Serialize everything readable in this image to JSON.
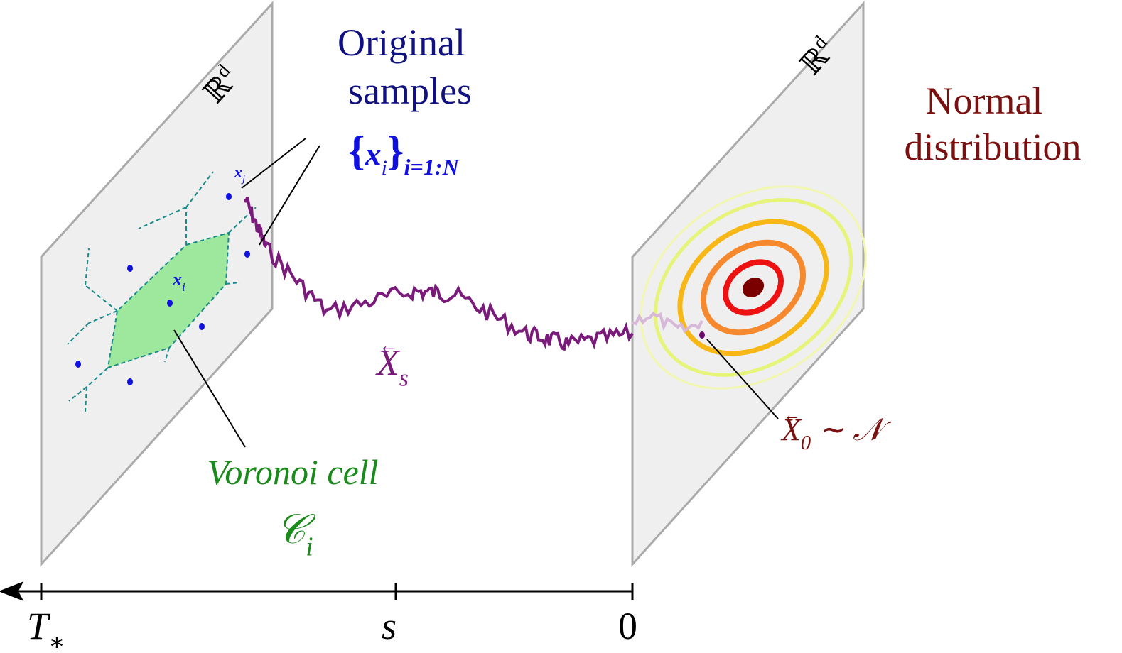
{
  "planes": [
    {
      "label": {
        "base": "ℝ",
        "sup": "d"
      }
    },
    {
      "label": {
        "base": "ℝ",
        "sup": "d"
      }
    }
  ],
  "samples": {
    "title_lines": [
      "Original",
      "samples"
    ],
    "set": {
      "open": "{",
      "base": "x",
      "sub": "i",
      "close": "}",
      "range": "i=1:N"
    }
  },
  "points": {
    "xj": {
      "base": "x",
      "sub": "j"
    },
    "xi": {
      "base": "x",
      "sub": "i"
    }
  },
  "path": {
    "accent": "←",
    "base": "X",
    "sub": "s"
  },
  "normal": {
    "title_lines": [
      "Normal",
      "distribution"
    ],
    "start": {
      "accent": "←",
      "base": "X",
      "sub": "0",
      "rel": "∼",
      "dist": "𝒩"
    }
  },
  "voronoi": {
    "title": "Voronoi cell",
    "cell": {
      "base": "𝒞",
      "sub": "i"
    }
  },
  "axis": {
    "ticks": [
      {
        "base": "T",
        "sub": "∗"
      },
      {
        "base": "s"
      },
      {
        "base": "0"
      }
    ]
  }
}
